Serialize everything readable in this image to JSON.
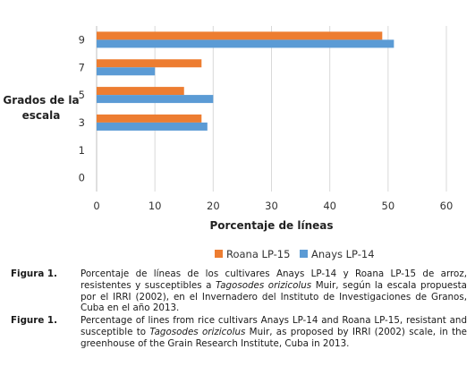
{
  "chart_data": {
    "type": "bar",
    "orientation": "horizontal",
    "categories": [
      "0",
      "1",
      "3",
      "5",
      "7",
      "9"
    ],
    "series": [
      {
        "name": "Roana LP-15",
        "color": "#ED7D31",
        "values": [
          0,
          0,
          18,
          15,
          18,
          49
        ]
      },
      {
        "name": "Anays LP-14",
        "color": "#5B9BD5",
        "values": [
          0,
          0,
          19,
          20,
          10,
          51
        ]
      }
    ],
    "xlabel": "Porcentaje de líneas",
    "ylabel": "Grados de la escala",
    "ylabel_lines": [
      "Grados de la",
      "escala"
    ],
    "xlim": [
      0,
      60
    ],
    "xticks": [
      "0",
      "10",
      "20",
      "30",
      "40",
      "50",
      "60"
    ],
    "grid": "vertical",
    "legend": "bottom"
  },
  "captions": [
    {
      "label": "Figura 1.",
      "text_before": "Porcentaje de líneas de los cultivares Anays LP-14 y Roana LP-15 de arroz, resistentes y susceptibles a ",
      "italic": "Tagosodes orizicolus",
      "text_after": " Muir, según la escala propuesta por el IRRI (2002), en el Invernadero del Instituto de Investigaciones de Granos, Cuba en el año 2013."
    },
    {
      "label": "Figure 1.",
      "text_before": "Percentage of lines from rice cultivars Anays LP-14 and Roana LP-15, resistant and susceptible to ",
      "italic": "Tagosodes orizicolus",
      "text_after": " Muir, as proposed by IRRI (2002) scale, in the greenhouse of the Grain Research Institute, Cuba in 2013."
    }
  ]
}
